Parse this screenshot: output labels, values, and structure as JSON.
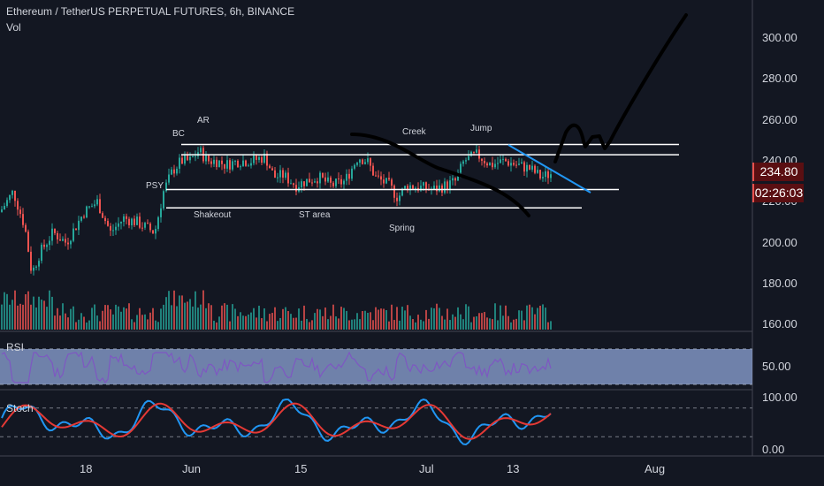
{
  "header": {
    "title": "Ethereum / TetherUS PERPETUAL FUTURES, 6h, BINANCE",
    "volume_label": "Vol"
  },
  "price_badge": {
    "value": "234.80",
    "countdown": "02:26:03",
    "color": "#e9514d"
  },
  "panes": {
    "rsi_label": "RSI",
    "stoch_label": "Stoch"
  },
  "colors": {
    "background": "#131722",
    "up": "#26a69a",
    "down": "#ef5350",
    "rsi_line": "#7e57c2",
    "rsi_band": "#8fa6d8",
    "stoch_k": "#2196f3",
    "stoch_d": "#e53935"
  },
  "annotations": {
    "bc": "BC",
    "ar": "AR",
    "psy": "PSY",
    "shakeout": "Shakeout",
    "st_area": "ST area",
    "creek": "Creek",
    "spring": "Spring",
    "jump": "Jump"
  },
  "chart_data": [
    {
      "type": "candlestick",
      "title": "Ethereum / TetherUS PERPETUAL FUTURES, 6h, BINANCE",
      "y_ticks": [
        "300.00",
        "280.00",
        "260.00",
        "240.00",
        "220.00",
        "200.00",
        "180.00",
        "160.00"
      ],
      "x_ticks": [
        "18",
        "Jun",
        "15",
        "Jul",
        "13",
        "Aug"
      ],
      "horizontal_levels": [
        248,
        243,
        226,
        217
      ],
      "last_price": 234.8
    },
    {
      "type": "line",
      "name": "RSI",
      "y_ticks": [
        "50.00"
      ],
      "band": [
        30,
        70
      ]
    },
    {
      "type": "line",
      "name": "Stoch",
      "y_ticks": [
        "100.00",
        "0.00"
      ],
      "levels": [
        80,
        20
      ]
    }
  ]
}
